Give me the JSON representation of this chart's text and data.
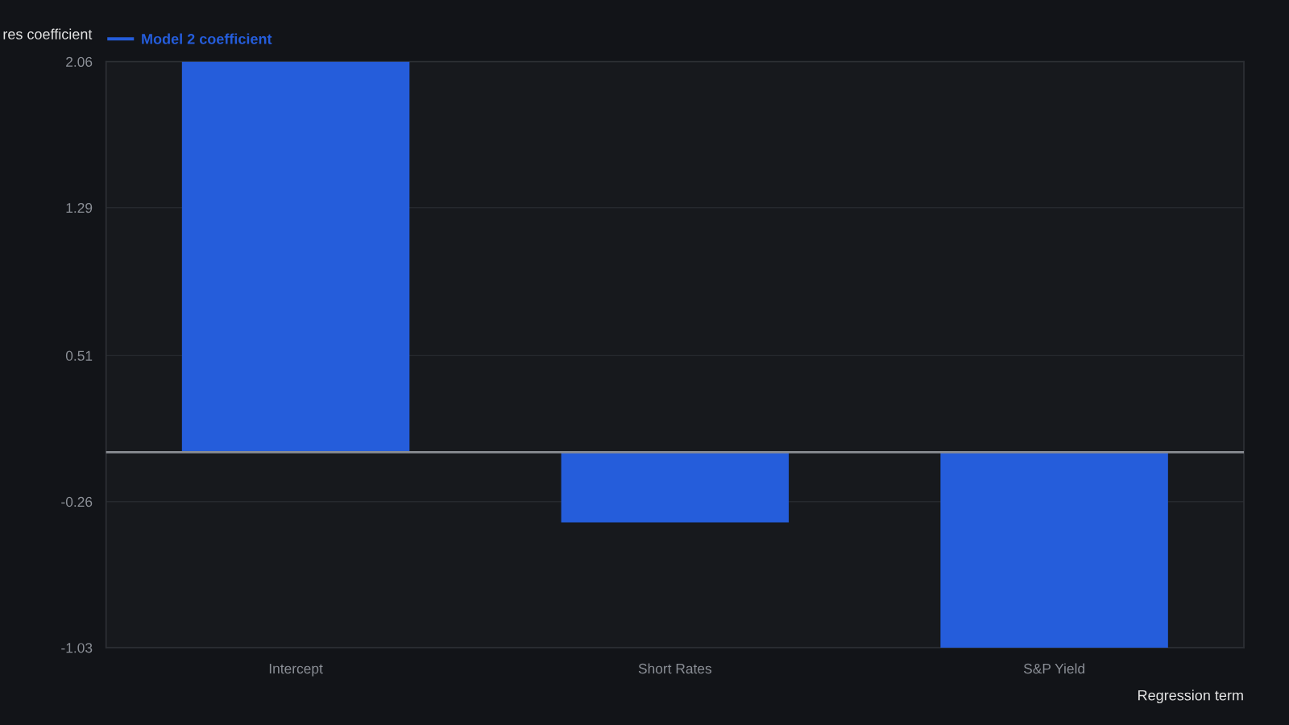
{
  "chart_data": {
    "type": "bar",
    "ylabel": "res coefficient",
    "xlabel": "Regression term",
    "categories": [
      "Intercept",
      "Short Rates",
      "S&P Yield"
    ],
    "series": [
      {
        "name": "Model 2 coefficient",
        "color": "#255ddb",
        "values": [
          2.06,
          -0.37,
          -1.03
        ]
      }
    ],
    "ylim": [
      -1.03,
      2.06
    ],
    "yticks": [
      2.06,
      1.29,
      0.51,
      -0.26,
      -1.03
    ],
    "grid": "y",
    "legend": "top left",
    "ref_lines": [
      {
        "axis": "y",
        "value": 0,
        "color": "#8a8d93"
      }
    ]
  }
}
